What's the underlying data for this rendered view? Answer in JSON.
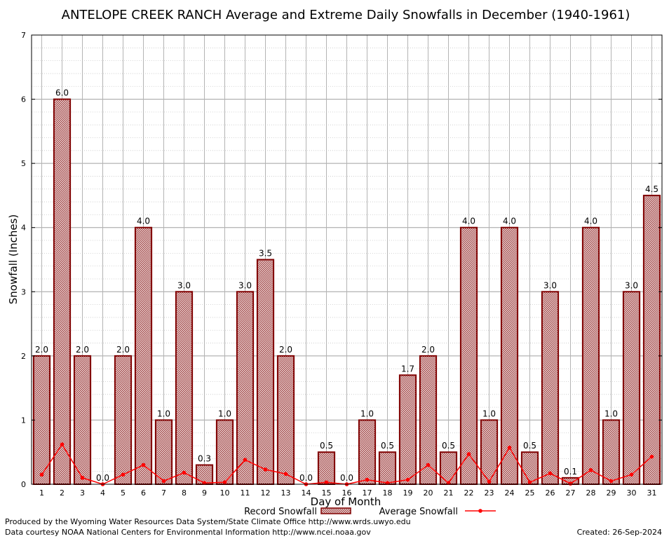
{
  "chart_data": {
    "type": "bar",
    "title": "ANTELOPE CREEK RANCH Average and Extreme Daily Snowfalls in December (1940-1961)",
    "xlabel": "Day of Month",
    "ylabel": "Snowfall (Inches)",
    "ylim": [
      0,
      7
    ],
    "yticks": [
      "0",
      "1",
      "2",
      "3",
      "4",
      "5",
      "6",
      "7"
    ],
    "categories": [
      "1",
      "2",
      "3",
      "4",
      "5",
      "6",
      "7",
      "8",
      "9",
      "10",
      "11",
      "12",
      "13",
      "14",
      "15",
      "16",
      "17",
      "18",
      "19",
      "20",
      "21",
      "22",
      "23",
      "24",
      "25",
      "26",
      "27",
      "28",
      "29",
      "30",
      "31"
    ],
    "series": [
      {
        "name": "Record Snowfall",
        "type": "bar",
        "values": [
          2.0,
          6.0,
          2.0,
          0.0,
          2.0,
          4.0,
          1.0,
          3.0,
          0.3,
          1.0,
          3.0,
          3.5,
          2.0,
          0.0,
          0.5,
          0.0,
          1.0,
          0.5,
          1.7,
          2.0,
          0.5,
          4.0,
          1.0,
          4.0,
          0.5,
          3.0,
          0.1,
          4.0,
          1.0,
          3.0,
          4.5
        ],
        "labels": [
          "2.0",
          "6.0",
          "2.0",
          "0.0",
          "2.0",
          "4.0",
          "1.0",
          "3.0",
          "0.3",
          "1.0",
          "3.0",
          "3.5",
          "2.0",
          "0.0",
          "0.5",
          "0.0",
          "1.0",
          "0.5",
          "1.7",
          "2.0",
          "0.5",
          "4.0",
          "1.0",
          "4.0",
          "0.5",
          "3.0",
          "0.1",
          "4.0",
          "1.0",
          "3.0",
          "4.5"
        ]
      },
      {
        "name": "Average Snowfall",
        "type": "line",
        "values": [
          0.15,
          0.62,
          0.1,
          0.0,
          0.15,
          0.3,
          0.05,
          0.18,
          0.02,
          0.03,
          0.38,
          0.23,
          0.16,
          0.0,
          0.03,
          0.0,
          0.07,
          0.02,
          0.07,
          0.3,
          0.02,
          0.47,
          0.04,
          0.57,
          0.03,
          0.17,
          0.01,
          0.22,
          0.05,
          0.15,
          0.43
        ]
      }
    ],
    "grid": true,
    "legend": "bottom-center",
    "colors": {
      "bar_stroke": "#800000",
      "bar_fill": "#a04848",
      "bar_hatch": "#f0dcdc",
      "line": "#ff0000",
      "grid": "#b0b0b0"
    }
  },
  "footer": {
    "credit": "Produced by the Wyoming Water Resources Data System/State Climate Office http://www.wrds.uwyo.edu",
    "data_source": "Data courtesy NOAA National Centers for Environmental Information http://www.ncei.noaa.gov",
    "created": "Created:  26-Sep-2024"
  }
}
